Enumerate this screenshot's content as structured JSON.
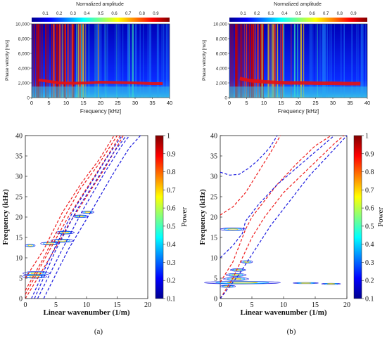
{
  "colors": {
    "jet": [
      "#00008f",
      "#0000ff",
      "#0080ff",
      "#00ffff",
      "#80ff80",
      "#ffff00",
      "#ff8000",
      "#ff0000",
      "#800000"
    ],
    "mode_red": "#ee1c1c",
    "mode_blue": "#1a1adf"
  },
  "caption_a": "(a)",
  "caption_b": "(b)",
  "chart_data": [
    {
      "type": "heatmap",
      "panel": "top-left",
      "colorbar_title": "Normalized amplitude",
      "colorbar_ticks": [
        "0.1",
        "0.2",
        "0.3",
        "0.4",
        "0.5",
        "0.6",
        "0.7",
        "0.8",
        "0.9"
      ],
      "xlabel": "Frequency [kHz]",
      "ylabel": "Phase velocity [m/s]",
      "xlim": [
        0,
        40
      ],
      "ylim": [
        0,
        10000
      ],
      "xticks": [
        "0",
        "5",
        "10",
        "15",
        "20",
        "25",
        "30",
        "35",
        "40"
      ],
      "yticks": [
        "0",
        "2,000",
        "4,000",
        "6,000",
        "8,000",
        "10,000"
      ],
      "ridge": {
        "description_free": true,
        "x": [
          2,
          5,
          8,
          12,
          16,
          20,
          25,
          30,
          35,
          38
        ],
        "y": [
          2400,
          2200,
          2000,
          1950,
          2000,
          2100,
          2050,
          2000,
          1900,
          1900
        ]
      }
    },
    {
      "type": "heatmap",
      "panel": "top-right",
      "colorbar_title": "Normalized amplitude",
      "colorbar_ticks": [
        "0.1",
        "0.2",
        "0.3",
        "0.4",
        "0.5",
        "0.6",
        "0.7",
        "0.8",
        "0.9"
      ],
      "xlabel": "Frequency [kHz]",
      "ylabel": "Phase velocity [m/s]",
      "xlim": [
        0,
        40
      ],
      "ylim": [
        0,
        10000
      ],
      "xticks": [
        "0",
        "5",
        "10",
        "15",
        "20",
        "25",
        "30",
        "35",
        "40"
      ],
      "yticks": [
        "0",
        "2,000",
        "4,000",
        "6,000",
        "8,000",
        "10,000"
      ],
      "ridge": {
        "x": [
          3,
          6,
          10,
          14,
          18,
          22,
          26,
          30,
          34,
          38
        ],
        "y": [
          2600,
          2300,
          2150,
          2050,
          2000,
          2000,
          1950,
          1950,
          1900,
          1900
        ]
      }
    },
    {
      "type": "line",
      "panel": "a",
      "xlabel": "Linear wavenumber (1/m)",
      "ylabel": "Frequency (kHz)",
      "xlim": [
        0,
        20
      ],
      "ylim": [
        0,
        40
      ],
      "xticks": [
        "0",
        "5",
        "10",
        "15",
        "20"
      ],
      "yticks": [
        "0",
        "5",
        "10",
        "15",
        "20",
        "25",
        "30",
        "35",
        "40"
      ],
      "colorbar_label": "Power",
      "colorbar_ticks": [
        "0.1",
        "0.2",
        "0.3",
        "0.4",
        "0.5",
        "0.6",
        "0.7",
        "0.8",
        "0.9",
        "1"
      ],
      "series": [
        {
          "color": "red",
          "points": [
            [
              0,
              5
            ],
            [
              3,
              12
            ],
            [
              6,
              21
            ],
            [
              9,
              28
            ],
            [
              12,
              34
            ],
            [
              14.5,
              40
            ]
          ]
        },
        {
          "color": "red",
          "points": [
            [
              0,
              2
            ],
            [
              3,
              10
            ],
            [
              6,
              19
            ],
            [
              9,
              27
            ],
            [
              12,
              33
            ],
            [
              15,
              40
            ]
          ]
        },
        {
          "color": "red",
          "points": [
            [
              0,
              1
            ],
            [
              4,
              12
            ],
            [
              7,
              20
            ],
            [
              10,
              27
            ],
            [
              13,
              34
            ],
            [
              15.5,
              40
            ]
          ]
        },
        {
          "color": "red",
          "points": [
            [
              0,
              0
            ],
            [
              4,
              10
            ],
            [
              7,
              18
            ],
            [
              10,
              25
            ],
            [
              13,
              32
            ],
            [
              16,
              40
            ]
          ]
        },
        {
          "color": "blue",
          "points": [
            [
              1,
              0
            ],
            [
              4,
              10
            ],
            [
              8,
              22
            ],
            [
              11,
              29
            ],
            [
              13.5,
              35
            ],
            [
              15.8,
              40
            ]
          ]
        },
        {
          "color": "blue",
          "points": [
            [
              1.5,
              0
            ],
            [
              5,
              12
            ],
            [
              8.5,
              22
            ],
            [
              12,
              30
            ],
            [
              14.5,
              36
            ],
            [
              16.5,
              40
            ]
          ]
        },
        {
          "color": "blue",
          "points": [
            [
              2,
              0
            ],
            [
              6,
              12
            ],
            [
              9.5,
              22
            ],
            [
              13,
              31
            ],
            [
              15.5,
              37
            ],
            [
              17,
              40
            ]
          ]
        },
        {
          "color": "blue",
          "points": [
            [
              3,
              0
            ],
            [
              7,
              12
            ],
            [
              11,
              22
            ],
            [
              14.5,
              31
            ],
            [
              17,
              37
            ],
            [
              18.8,
              40
            ]
          ]
        }
      ],
      "contours": [
        {
          "cx": 1.8,
          "cy": 6.2,
          "rx": 2.2,
          "ry": 0.45
        },
        {
          "cx": 1.5,
          "cy": 5.4,
          "rx": 2.0,
          "ry": 0.4
        },
        {
          "cx": 4.0,
          "cy": 13.5,
          "rx": 1.5,
          "ry": 0.35
        },
        {
          "cx": 6.0,
          "cy": 14.2,
          "rx": 1.8,
          "ry": 0.4
        },
        {
          "cx": 6.5,
          "cy": 16.2,
          "rx": 1.5,
          "ry": 0.35
        },
        {
          "cx": 9.0,
          "cy": 20.2,
          "rx": 1.2,
          "ry": 0.3
        },
        {
          "cx": 10.2,
          "cy": 21.2,
          "rx": 1.0,
          "ry": 0.3
        },
        {
          "cx": 0.8,
          "cy": 13.0,
          "rx": 0.8,
          "ry": 0.3
        }
      ]
    },
    {
      "type": "line",
      "panel": "b",
      "xlabel": "Linear wavenumber (1/m)",
      "ylabel": "Frequency (kHz)",
      "xlim": [
        0,
        20
      ],
      "ylim": [
        0,
        40
      ],
      "xticks": [
        "0",
        "5",
        "10",
        "15",
        "20"
      ],
      "yticks": [
        "0",
        "5",
        "10",
        "15",
        "20",
        "25",
        "30",
        "35",
        "40"
      ],
      "colorbar_label": "Power",
      "colorbar_ticks": [
        "0.1",
        "0.2",
        "0.3",
        "0.4",
        "0.5",
        "0.6",
        "0.7",
        "0.8",
        "0.9",
        "1"
      ],
      "series": [
        {
          "color": "red",
          "points": [
            [
              0,
              20.5
            ],
            [
              2,
              22.5
            ],
            [
              4,
              26
            ],
            [
              6,
              31
            ],
            [
              8,
              36
            ],
            [
              9.5,
              40
            ]
          ]
        },
        {
          "color": "red",
          "points": [
            [
              0,
              4
            ],
            [
              2,
              9
            ],
            [
              4,
              17
            ],
            [
              5,
              20
            ],
            [
              7,
              24
            ],
            [
              9,
              28
            ],
            [
              12,
              33
            ],
            [
              15,
              37.5
            ],
            [
              17.5,
              40
            ]
          ]
        },
        {
          "color": "red",
          "points": [
            [
              0,
              0
            ],
            [
              2,
              5
            ],
            [
              3.5,
              10
            ],
            [
              5,
              15
            ],
            [
              7,
              20
            ],
            [
              10,
              26
            ],
            [
              14,
              32
            ],
            [
              18,
              38
            ],
            [
              19.5,
              40
            ]
          ]
        },
        {
          "color": "blue",
          "points": [
            [
              0,
              31
            ],
            [
              1.5,
              30.3
            ],
            [
              3,
              30.5
            ],
            [
              4.5,
              32
            ],
            [
              6,
              34
            ],
            [
              7.8,
              37
            ],
            [
              9,
              40
            ]
          ]
        },
        {
          "color": "blue",
          "points": [
            [
              0,
              10
            ],
            [
              2,
              13
            ],
            [
              3.5,
              16
            ],
            [
              4,
              19
            ],
            [
              6,
              23
            ],
            [
              9,
              28
            ],
            [
              12,
              32
            ],
            [
              15,
              36
            ],
            [
              18,
              40
            ]
          ]
        },
        {
          "color": "blue",
          "points": [
            [
              0,
              0
            ],
            [
              3,
              6
            ],
            [
              5.5,
              12
            ],
            [
              8,
              18
            ],
            [
              11,
              24
            ],
            [
              14,
              30
            ],
            [
              17,
              35
            ],
            [
              20,
              40
            ]
          ]
        }
      ],
      "contours": [
        {
          "cx": 3.5,
          "cy": 3.9,
          "rx": 6.0,
          "ry": 0.3
        },
        {
          "cx": 13.5,
          "cy": 3.8,
          "rx": 2.0,
          "ry": 0.15
        },
        {
          "cx": 17.5,
          "cy": 3.6,
          "rx": 1.5,
          "ry": 0.15
        },
        {
          "cx": 2.5,
          "cy": 4.8,
          "rx": 2.0,
          "ry": 0.35
        },
        {
          "cx": 2.5,
          "cy": 5.8,
          "rx": 1.6,
          "ry": 0.35
        },
        {
          "cx": 2.8,
          "cy": 7.0,
          "rx": 1.2,
          "ry": 0.3
        },
        {
          "cx": 4.2,
          "cy": 9.0,
          "rx": 0.9,
          "ry": 0.3
        },
        {
          "cx": 2.0,
          "cy": 17.0,
          "rx": 2.0,
          "ry": 0.3
        },
        {
          "cx": 1.2,
          "cy": 3.0,
          "rx": 1.2,
          "ry": 0.25
        }
      ]
    }
  ]
}
